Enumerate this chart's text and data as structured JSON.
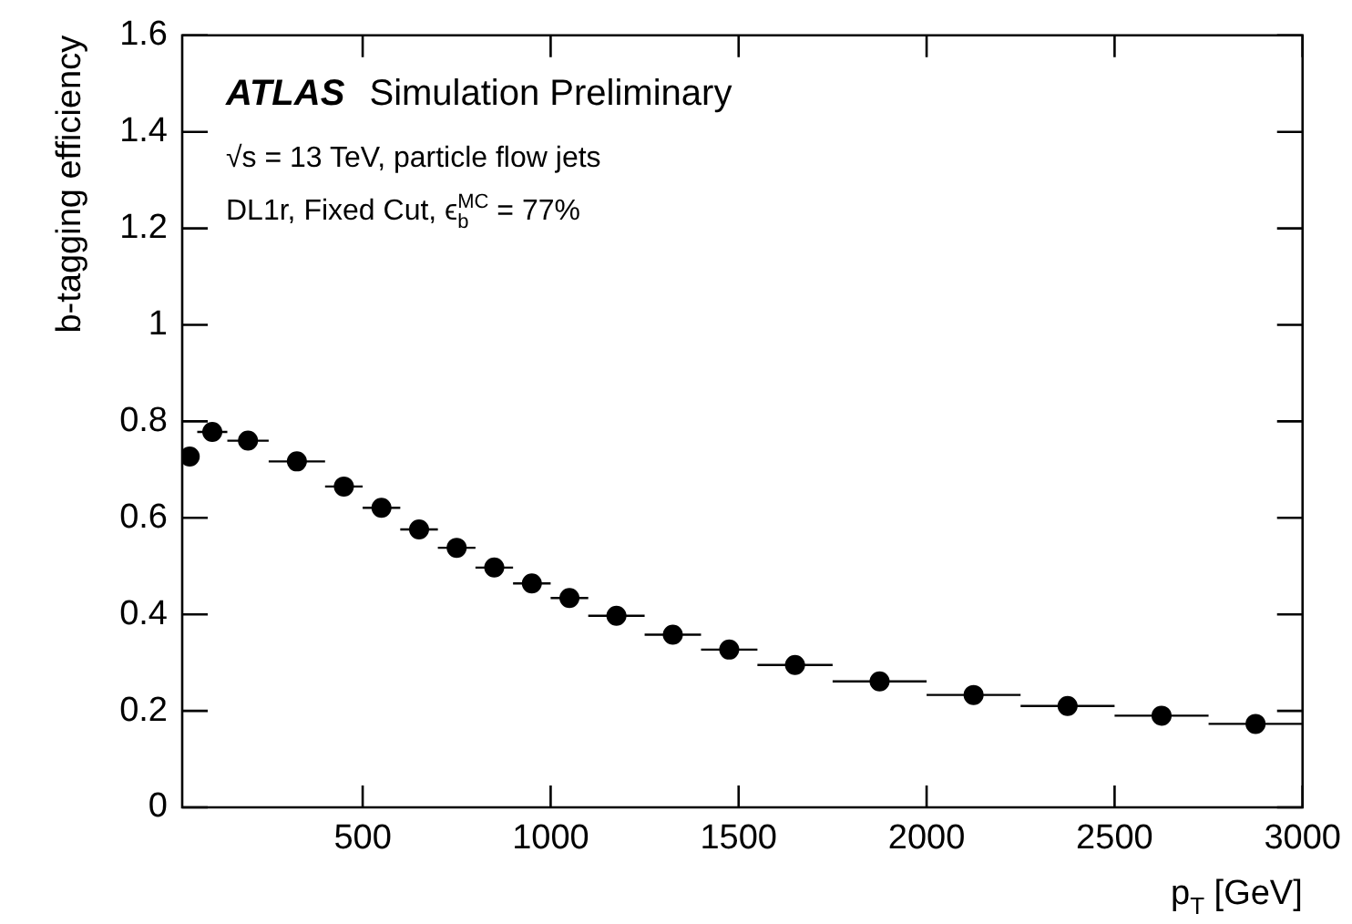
{
  "chart_data": {
    "type": "scatter",
    "xlabel": "p$_{T}$ [GeV]",
    "ylabel": "b-tagging efficiency",
    "annotations": [
      "ATLAS Simulation Preliminary",
      "√s = 13 TeV, particle flow jets",
      "DL1r, Fixed Cut, ϵ$_{b}$$^{MC}$ = 77%"
    ],
    "x": [
      40,
      100,
      195,
      325,
      450,
      550,
      650,
      750,
      850,
      950,
      1050,
      1175,
      1325,
      1475,
      1650,
      1875,
      2125,
      2375,
      2625,
      2875
    ],
    "series": [
      {
        "color": "#000000",
        "values": [
          0.727,
          0.778,
          0.76,
          0.717,
          0.665,
          0.621,
          0.576,
          0.538,
          0.497,
          0.464,
          0.434,
          0.397,
          0.358,
          0.327,
          0.295,
          0.261,
          0.233,
          0.21,
          0.19,
          0.173
        ],
        "xerrors": [
          20,
          40,
          55,
          75,
          50,
          50,
          50,
          50,
          50,
          50,
          50,
          75,
          75,
          75,
          100,
          125,
          125,
          125,
          125,
          125
        ]
      }
    ],
    "xlim": [
      20,
      3000
    ],
    "xticks": [
      500,
      1000,
      1500,
      2000,
      2500,
      3000
    ],
    "ylim": [
      0,
      1.6
    ],
    "yticks": [
      0,
      0.2,
      0.4,
      0.6,
      0.8,
      1,
      1.2,
      1.4,
      1.6
    ],
    "marker": "circle",
    "grid": false,
    "legend": false
  }
}
